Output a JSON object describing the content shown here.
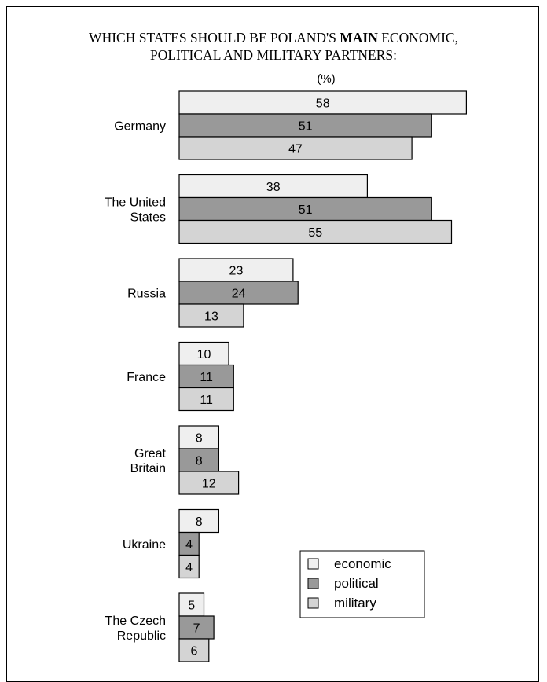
{
  "chart_data": {
    "type": "bar",
    "orientation": "horizontal",
    "title_line1_prefix": "WHICH STATES SHOULD BE POLAND'S ",
    "title_line1_bold": "MAIN",
    "title_line1_suffix": " ECONOMIC,",
    "title_line2": "POLITICAL AND MILITARY PARTNERS:",
    "unit": "(%)",
    "categories": [
      [
        "Germany"
      ],
      [
        "The United",
        "States"
      ],
      [
        "Russia"
      ],
      [
        "France"
      ],
      [
        "Great",
        "Britain"
      ],
      [
        "Ukraine"
      ],
      [
        "The Czech",
        "Republic"
      ]
    ],
    "series": [
      {
        "name": "economic",
        "color": "#efefef",
        "values": [
          58,
          38,
          23,
          10,
          8,
          8,
          5
        ]
      },
      {
        "name": "political",
        "color": "#999999",
        "values": [
          51,
          51,
          24,
          11,
          8,
          4,
          7
        ]
      },
      {
        "name": "military",
        "color": "#d4d4d4",
        "values": [
          47,
          55,
          13,
          11,
          12,
          4,
          6
        ]
      }
    ],
    "legend_position": "bottom-right",
    "grid": false
  }
}
